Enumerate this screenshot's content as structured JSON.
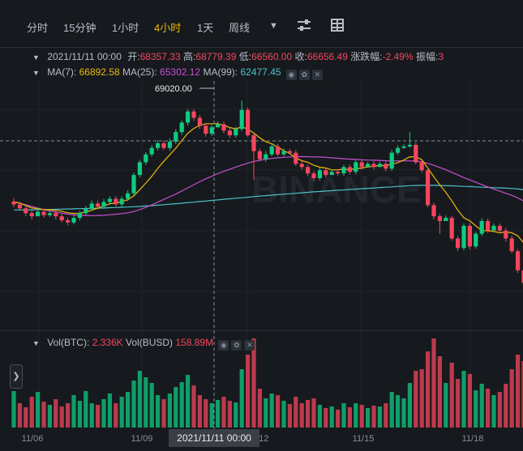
{
  "toolbar": {
    "intervals": [
      "分时",
      "15分钟",
      "1小时",
      "4小时",
      "1天",
      "周线"
    ],
    "active_interval": "4小时",
    "dropdown_icon": "caret-down-icon",
    "settings_icon": "sliders-icon",
    "layout_icon": "grid-icon"
  },
  "ohlc": {
    "date": "2021/11/11 00:00",
    "open_label": "开:",
    "open": "68357.33",
    "high_label": "高:",
    "high": "68779.39",
    "low_label": "低:",
    "low": "66560.00",
    "close_label": "收:",
    "close": "66656.49",
    "change_label": "涨跌幅:",
    "change": "-2.49%",
    "amp_label": "振幅:",
    "amp": "3"
  },
  "ma": {
    "ma7_label": "MA(7):",
    "ma7": "66892.58",
    "ma25_label": "MA(25):",
    "ma25": "65302.12",
    "ma99_label": "MA(99):",
    "ma99": "62477.45"
  },
  "volume": {
    "btc_label": "Vol(BTC):",
    "btc": "2.336K",
    "busd_label": "Vol(BUSD)",
    "busd": "158.89M"
  },
  "crosshair_time": "2021/11/11 00:00",
  "watermark": "BINANCE",
  "colors": {
    "up": "#0ecb81",
    "down": "#f6465d",
    "ma7": "#f0b90b",
    "ma25": "#c94fd2",
    "ma99": "#4ec3c9"
  },
  "chart_data": {
    "type": "candlestick",
    "x_tick_labels": [
      "11/06",
      "11/09",
      "11/12",
      "11/15",
      "11/18"
    ],
    "high_annotation": "69020.00",
    "candles": [
      [
        62420,
        62240,
        62650,
        62060
      ],
      [
        62240,
        62000,
        62420,
        61830
      ],
      [
        62000,
        61700,
        62190,
        61510
      ],
      [
        61700,
        61500,
        61920,
        61290
      ],
      [
        61500,
        61790,
        62020,
        61640
      ],
      [
        61790,
        61570,
        61990,
        61400
      ],
      [
        61570,
        61700,
        61840,
        61470
      ],
      [
        61700,
        61500,
        61880,
        61300
      ],
      [
        61500,
        61250,
        61660,
        61090
      ],
      [
        61250,
        61110,
        61400,
        60920
      ],
      [
        61110,
        61400,
        61560,
        60990
      ],
      [
        61400,
        61700,
        61850,
        61240
      ],
      [
        61700,
        62000,
        62150,
        61570
      ],
      [
        62000,
        62300,
        62490,
        61830
      ],
      [
        62300,
        62100,
        62490,
        61920
      ],
      [
        62100,
        62400,
        62590,
        61960
      ],
      [
        62400,
        62600,
        62770,
        62230
      ],
      [
        62600,
        62250,
        62780,
        62120
      ],
      [
        62250,
        62600,
        62760,
        62090
      ],
      [
        62600,
        62950,
        63140,
        62460
      ],
      [
        62950,
        64100,
        64250,
        62820
      ],
      [
        64100,
        64900,
        65060,
        63950
      ],
      [
        64900,
        65400,
        65540,
        64740
      ],
      [
        65400,
        65800,
        65970,
        65250
      ],
      [
        65800,
        66100,
        66300,
        65640
      ],
      [
        66100,
        65800,
        66260,
        65670
      ],
      [
        65800,
        66200,
        66400,
        65620
      ],
      [
        66200,
        66800,
        66990,
        66050
      ],
      [
        66800,
        67400,
        67540,
        66620
      ],
      [
        67400,
        68100,
        68250,
        67210
      ],
      [
        68100,
        67700,
        68260,
        67510
      ],
      [
        67700,
        67200,
        67870,
        67010
      ],
      [
        67200,
        66700,
        67340,
        66520
      ],
      [
        66700,
        67100,
        67240,
        66540
      ],
      [
        67100,
        67300,
        67470,
        67170
      ],
      [
        67300,
        66900,
        67460,
        66720
      ],
      [
        66900,
        66600,
        67080,
        66420
      ],
      [
        66600,
        67000,
        67140,
        66450
      ],
      [
        67000,
        68200,
        68780,
        66860
      ],
      [
        68200,
        66600,
        68350,
        66500
      ],
      [
        66600,
        65600,
        66730,
        63800
      ],
      [
        65600,
        65100,
        65780,
        64970
      ],
      [
        65100,
        65400,
        65610,
        64930
      ],
      [
        65400,
        65900,
        66040,
        65270
      ],
      [
        65900,
        65400,
        66050,
        65270
      ],
      [
        65400,
        65600,
        65770,
        65270
      ],
      [
        65600,
        65500,
        65740,
        65370
      ],
      [
        65500,
        64800,
        65670,
        64670
      ],
      [
        64800,
        64600,
        64950,
        64440
      ],
      [
        64600,
        64200,
        64750,
        64030
      ],
      [
        64200,
        63900,
        64350,
        63700
      ],
      [
        63900,
        64400,
        64560,
        63750
      ],
      [
        64400,
        64100,
        64550,
        63960
      ],
      [
        64100,
        64300,
        64450,
        64150
      ],
      [
        64300,
        64200,
        64460,
        64060
      ],
      [
        64200,
        64600,
        64740,
        64050
      ],
      [
        64600,
        64300,
        64750,
        64130
      ],
      [
        64300,
        64900,
        65050,
        64150
      ],
      [
        64900,
        64600,
        65080,
        64430
      ],
      [
        64600,
        64800,
        64940,
        64650
      ],
      [
        64800,
        64600,
        64970,
        64440
      ],
      [
        64600,
        64800,
        64950,
        64670
      ],
      [
        64800,
        64500,
        64960,
        64320
      ],
      [
        64500,
        65500,
        65670,
        64350
      ],
      [
        65500,
        65800,
        65970,
        65360
      ],
      [
        65800,
        65900,
        66050,
        65760
      ],
      [
        65900,
        66000,
        66800,
        65810
      ],
      [
        66000,
        64900,
        66170,
        64770
      ],
      [
        64900,
        64400,
        65030,
        64250
      ],
      [
        64400,
        62200,
        64570,
        62070
      ],
      [
        62200,
        61500,
        62360,
        61300
      ],
      [
        61500,
        61200,
        61670,
        60400
      ],
      [
        61200,
        61400,
        61550,
        61240
      ],
      [
        61400,
        60100,
        61540,
        59960
      ],
      [
        60100,
        59500,
        60270,
        59300
      ],
      [
        59500,
        60900,
        61050,
        59350
      ],
      [
        60900,
        59600,
        61070,
        59400
      ],
      [
        59600,
        60400,
        60540,
        59460
      ],
      [
        60400,
        61200,
        61370,
        60260
      ],
      [
        61200,
        60600,
        61370,
        60450
      ],
      [
        60600,
        60900,
        61050,
        60750
      ],
      [
        60900,
        60600,
        61040,
        60410
      ],
      [
        60600,
        60100,
        60760,
        59900
      ],
      [
        60100,
        59300,
        60270,
        59170
      ],
      [
        59300,
        58100,
        59450,
        57940
      ],
      [
        58100,
        57300,
        58260,
        57100
      ],
      [
        57300,
        56400,
        57470,
        56220
      ]
    ],
    "ma7": [
      62420,
      62330,
      62180,
      62020,
      61980,
      61920,
      61910,
      61880,
      61820,
      61720,
      61680,
      61690,
      61760,
      61890,
      62010,
      62150,
      62290,
      62340,
      62430,
      62540,
      62780,
      63180,
      63590,
      64020,
      64520,
      64960,
      65370,
      65790,
      66260,
      66730,
      67030,
      67220,
      67330,
      67330,
      67330,
      67230,
      67090,
      67000,
      67140,
      66980,
      66740,
      66440,
      66200,
      66070,
      65850,
      65630,
      65450,
      65190,
      65000,
      64900,
      64710,
      64590,
      64540,
      64420,
      64430,
      64460,
      64440,
      64490,
      64540,
      64600,
      64650,
      64690,
      64690,
      64780,
      64880,
      65040,
      65250,
      65230,
      65070,
      64540,
      63990,
      63480,
      63010,
      62480,
      61890,
      61410,
      61210,
      60900,
      60600,
      60590,
      60540,
      60460,
      60510,
      60460,
      60270,
      59810,
      59290
    ],
    "ma25": [
      62400,
      62320,
      62220,
      62120,
      62020,
      61920,
      61830,
      61760,
      61700,
      61640,
      61590,
      61560,
      61550,
      61540,
      61550,
      61560,
      61600,
      61630,
      61670,
      61720,
      61800,
      61920,
      62060,
      62220,
      62390,
      62560,
      62730,
      62900,
      63090,
      63290,
      63490,
      63680,
      63860,
      64020,
      64180,
      64330,
      64470,
      64600,
      64730,
      64850,
      64950,
      65030,
      65090,
      65140,
      65180,
      65210,
      65240,
      65250,
      65260,
      65250,
      65240,
      65230,
      65210,
      65180,
      65150,
      65120,
      65100,
      65080,
      65060,
      65040,
      65030,
      65020,
      65000,
      64990,
      64990,
      64990,
      64990,
      64980,
      64930,
      64830,
      64710,
      64570,
      64430,
      64270,
      64100,
      63940,
      63790,
      63640,
      63490,
      63350,
      63210,
      63080,
      62950,
      62820,
      62660,
      62460,
      62220
    ],
    "ma99": [
      61900,
      61900,
      61910,
      61910,
      61920,
      61930,
      61930,
      61940,
      61950,
      61960,
      61970,
      61980,
      61990,
      62000,
      62010,
      62020,
      62040,
      62050,
      62070,
      62080,
      62100,
      62120,
      62150,
      62170,
      62200,
      62230,
      62260,
      62290,
      62320,
      62360,
      62390,
      62430,
      62460,
      62500,
      62530,
      62570,
      62600,
      62640,
      62670,
      62700,
      62740,
      62770,
      62800,
      62830,
      62860,
      62890,
      62920,
      62950,
      62980,
      63010,
      63040,
      63060,
      63090,
      63110,
      63140,
      63160,
      63190,
      63210,
      63240,
      63260,
      63280,
      63310,
      63330,
      63350,
      63380,
      63400,
      63430,
      63440,
      63450,
      63450,
      63450,
      63440,
      63430,
      63420,
      63400,
      63380,
      63370,
      63350,
      63330,
      63320,
      63300,
      63290,
      63270,
      63250,
      63220,
      63180,
      63150
    ],
    "volume": [
      [
        45,
        0
      ],
      [
        30,
        1
      ],
      [
        25,
        1
      ],
      [
        38,
        1
      ],
      [
        44,
        0
      ],
      [
        32,
        1
      ],
      [
        28,
        0
      ],
      [
        35,
        1
      ],
      [
        26,
        1
      ],
      [
        30,
        1
      ],
      [
        40,
        0
      ],
      [
        33,
        0
      ],
      [
        45,
        0
      ],
      [
        30,
        0
      ],
      [
        28,
        1
      ],
      [
        35,
        0
      ],
      [
        42,
        0
      ],
      [
        30,
        1
      ],
      [
        38,
        0
      ],
      [
        44,
        0
      ],
      [
        58,
        0
      ],
      [
        70,
        0
      ],
      [
        62,
        0
      ],
      [
        55,
        0
      ],
      [
        40,
        0
      ],
      [
        35,
        1
      ],
      [
        42,
        0
      ],
      [
        50,
        0
      ],
      [
        56,
        0
      ],
      [
        65,
        0
      ],
      [
        52,
        1
      ],
      [
        40,
        1
      ],
      [
        35,
        1
      ],
      [
        30,
        0
      ],
      [
        34,
        0
      ],
      [
        38,
        1
      ],
      [
        33,
        1
      ],
      [
        31,
        0
      ],
      [
        72,
        0
      ],
      [
        90,
        1
      ],
      [
        110,
        1
      ],
      [
        48,
        1
      ],
      [
        36,
        0
      ],
      [
        42,
        0
      ],
      [
        40,
        1
      ],
      [
        33,
        0
      ],
      [
        29,
        1
      ],
      [
        38,
        1
      ],
      [
        30,
        1
      ],
      [
        34,
        1
      ],
      [
        36,
        1
      ],
      [
        28,
        0
      ],
      [
        24,
        1
      ],
      [
        26,
        0
      ],
      [
        22,
        1
      ],
      [
        30,
        0
      ],
      [
        25,
        1
      ],
      [
        30,
        0
      ],
      [
        28,
        1
      ],
      [
        24,
        0
      ],
      [
        27,
        1
      ],
      [
        26,
        0
      ],
      [
        30,
        1
      ],
      [
        44,
        0
      ],
      [
        40,
        0
      ],
      [
        36,
        0
      ],
      [
        55,
        0
      ],
      [
        70,
        1
      ],
      [
        72,
        1
      ],
      [
        94,
        1
      ],
      [
        110,
        1
      ],
      [
        88,
        1
      ],
      [
        55,
        0
      ],
      [
        80,
        1
      ],
      [
        60,
        1
      ],
      [
        70,
        0
      ],
      [
        66,
        1
      ],
      [
        46,
        0
      ],
      [
        54,
        0
      ],
      [
        48,
        1
      ],
      [
        40,
        0
      ],
      [
        44,
        1
      ],
      [
        54,
        1
      ],
      [
        72,
        1
      ],
      [
        90,
        1
      ],
      [
        82,
        1
      ],
      [
        68,
        1
      ]
    ]
  }
}
